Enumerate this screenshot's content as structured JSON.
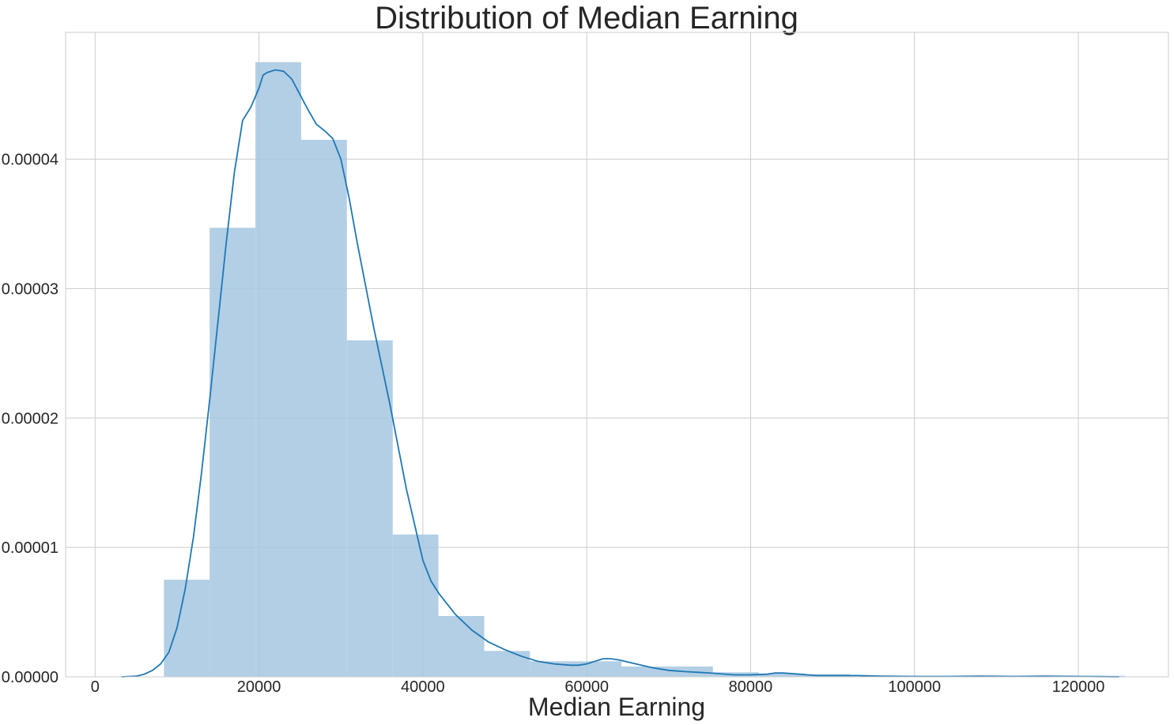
{
  "chart_data": {
    "type": "bar",
    "title": "Distribution of Median Earning",
    "xlabel": "Median Earning",
    "ylabel": "",
    "xlim": [
      -3600,
      131000
    ],
    "ylim": [
      0,
      4.98e-05
    ],
    "grid": true,
    "legend": "none",
    "x_ticks": [
      0,
      20000,
      40000,
      60000,
      80000,
      100000,
      120000
    ],
    "x_tick_labels": [
      "0",
      "20000",
      "40000",
      "60000",
      "80000",
      "100000",
      "120000"
    ],
    "y_ticks": [
      0,
      1e-05,
      2e-05,
      3e-05,
      4e-05
    ],
    "y_tick_labels": [
      "0.00000",
      "0.00001",
      "0.00002",
      "0.00003",
      "0.00004"
    ],
    "histogram": {
      "bin_edges": [
        8400,
        13980,
        19570,
        25150,
        30730,
        36320,
        41900,
        47490,
        53070,
        58650,
        64240,
        69820,
        75400,
        80990,
        86570,
        92150,
        97740,
        103320,
        108900,
        114490,
        120070,
        125650
      ],
      "values": [
        7.5e-06,
        3.47e-05,
        4.75e-05,
        4.15e-05,
        2.6e-05,
        1.1e-05,
        4.7e-06,
        2e-06,
        1.2e-06,
        1.2e-06,
        8e-07,
        8e-07,
        3.5e-07,
        2.5e-07,
        2e-07,
        1e-07,
        5e-08,
        5e-08,
        5e-08,
        8e-08,
        8e-08
      ],
      "color": "#a5c7e0"
    },
    "kde": {
      "x": [
        3200,
        5000,
        6000,
        7000,
        8000,
        9000,
        10000,
        11000,
        12000,
        13000,
        14000,
        15000,
        16000,
        17000,
        18000,
        19000,
        20000,
        20500,
        21000,
        22000,
        23000,
        24000,
        25000,
        26000,
        27000,
        28000,
        29000,
        30000,
        31000,
        32000,
        34000,
        36000,
        38000,
        40000,
        41000,
        42000,
        44000,
        46000,
        48000,
        50000,
        52000,
        54000,
        56000,
        58000,
        59000,
        60000,
        61000,
        62000,
        63000,
        64000,
        66000,
        68000,
        70000,
        72000,
        75000,
        78000,
        80000,
        82000,
        83000,
        84000,
        86000,
        88000,
        90000,
        93000,
        96000,
        100000,
        104000,
        108000,
        112000,
        116000,
        120000,
        125000
      ],
      "y": [
        0.0,
        5e-08,
        2e-07,
        5e-07,
        1e-06,
        1.9e-06,
        3.8e-06,
        6.8e-06,
        1.08e-05,
        1.58e-05,
        2.15e-05,
        2.75e-05,
        3.35e-05,
        3.9e-05,
        4.3e-05,
        4.4e-05,
        4.55e-05,
        4.65e-05,
        4.67e-05,
        4.69e-05,
        4.68e-05,
        4.62e-05,
        4.5e-05,
        4.38e-05,
        4.27e-05,
        4.22e-05,
        4.16e-05,
        4e-05,
        3.7e-05,
        3.35e-05,
        2.7e-05,
        2.1e-05,
        1.45e-05,
        9e-06,
        7.4e-06,
        6.4e-06,
        4.8e-06,
        3.6e-06,
        2.7e-06,
        2.1e-06,
        1.6e-06,
        1.2e-06,
        1e-06,
        9e-07,
        9e-07,
        1e-06,
        1.2e-06,
        1.4e-06,
        1.4e-06,
        1.3e-06,
        1e-06,
        7e-07,
        5e-07,
        4e-07,
        3e-07,
        1.5e-07,
        1.5e-07,
        2e-07,
        3e-07,
        3e-07,
        2e-07,
        1e-07,
        1e-07,
        1e-07,
        5e-08,
        3e-08,
        3e-08,
        5e-08,
        3e-08,
        5e-08,
        3e-08,
        0.0
      ],
      "color": "#1f77b4"
    }
  }
}
